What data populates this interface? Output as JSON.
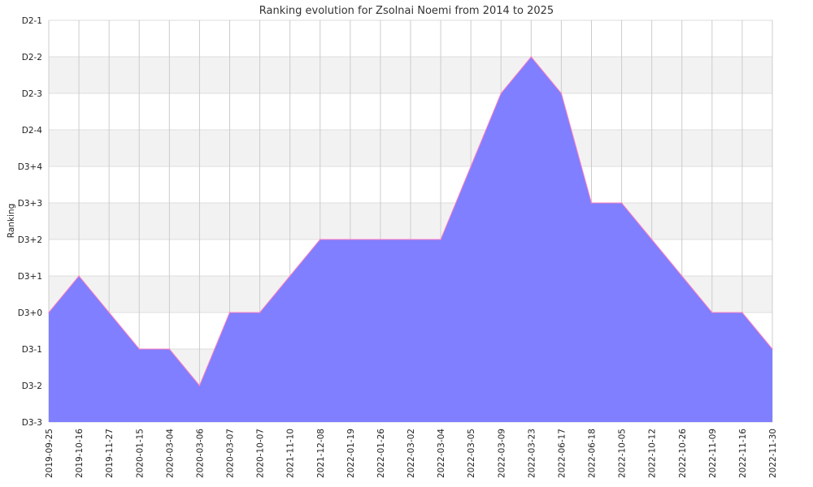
{
  "chart_data": {
    "type": "area",
    "title": "Ranking evolution for Zsolnai Noemi from 2014 to 2025",
    "ylabel": "Ranking",
    "xlabel": "",
    "y_levels": [
      "D3-3",
      "D3-2",
      "D3-1",
      "D3+0",
      "D3+1",
      "D3+2",
      "D3+3",
      "D3+4",
      "D2-4",
      "D2-3",
      "D2-2",
      "D2-1"
    ],
    "x": [
      "2019-09-25",
      "2019-10-16",
      "2019-11-27",
      "2020-01-15",
      "2020-03-04",
      "2020-03-06",
      "2020-03-07",
      "2020-10-07",
      "2021-11-10",
      "2021-12-08",
      "2022-01-19",
      "2022-01-26",
      "2022-03-02",
      "2022-03-04",
      "2022-03-05",
      "2022-03-09",
      "2022-03-23",
      "2022-06-17",
      "2022-06-18",
      "2022-10-05",
      "2022-10-12",
      "2022-10-26",
      "2022-11-09",
      "2022-11-16",
      "2022-11-30"
    ],
    "series": [
      {
        "values": [
          "D3+0",
          "D3+1",
          "D3+0",
          "D3-1",
          "D3-1",
          "D3-2",
          "D3+0",
          "D3+0",
          "D3+1",
          "D3+2",
          "D3+2",
          "D3+2",
          "D3+2",
          "D3+2",
          "D3+4",
          "D2-3",
          "D2-2",
          "D2-3",
          "D3+3",
          "D3+3",
          "D3+2",
          "D3+1",
          "D3+0",
          "D3+0",
          "D3-1"
        ]
      }
    ],
    "grid": true,
    "fill_color": "#7f7fff",
    "line_color": "#ff7fbf",
    "band_color": "#f2f2f2",
    "grid_color": "#cccccc"
  }
}
